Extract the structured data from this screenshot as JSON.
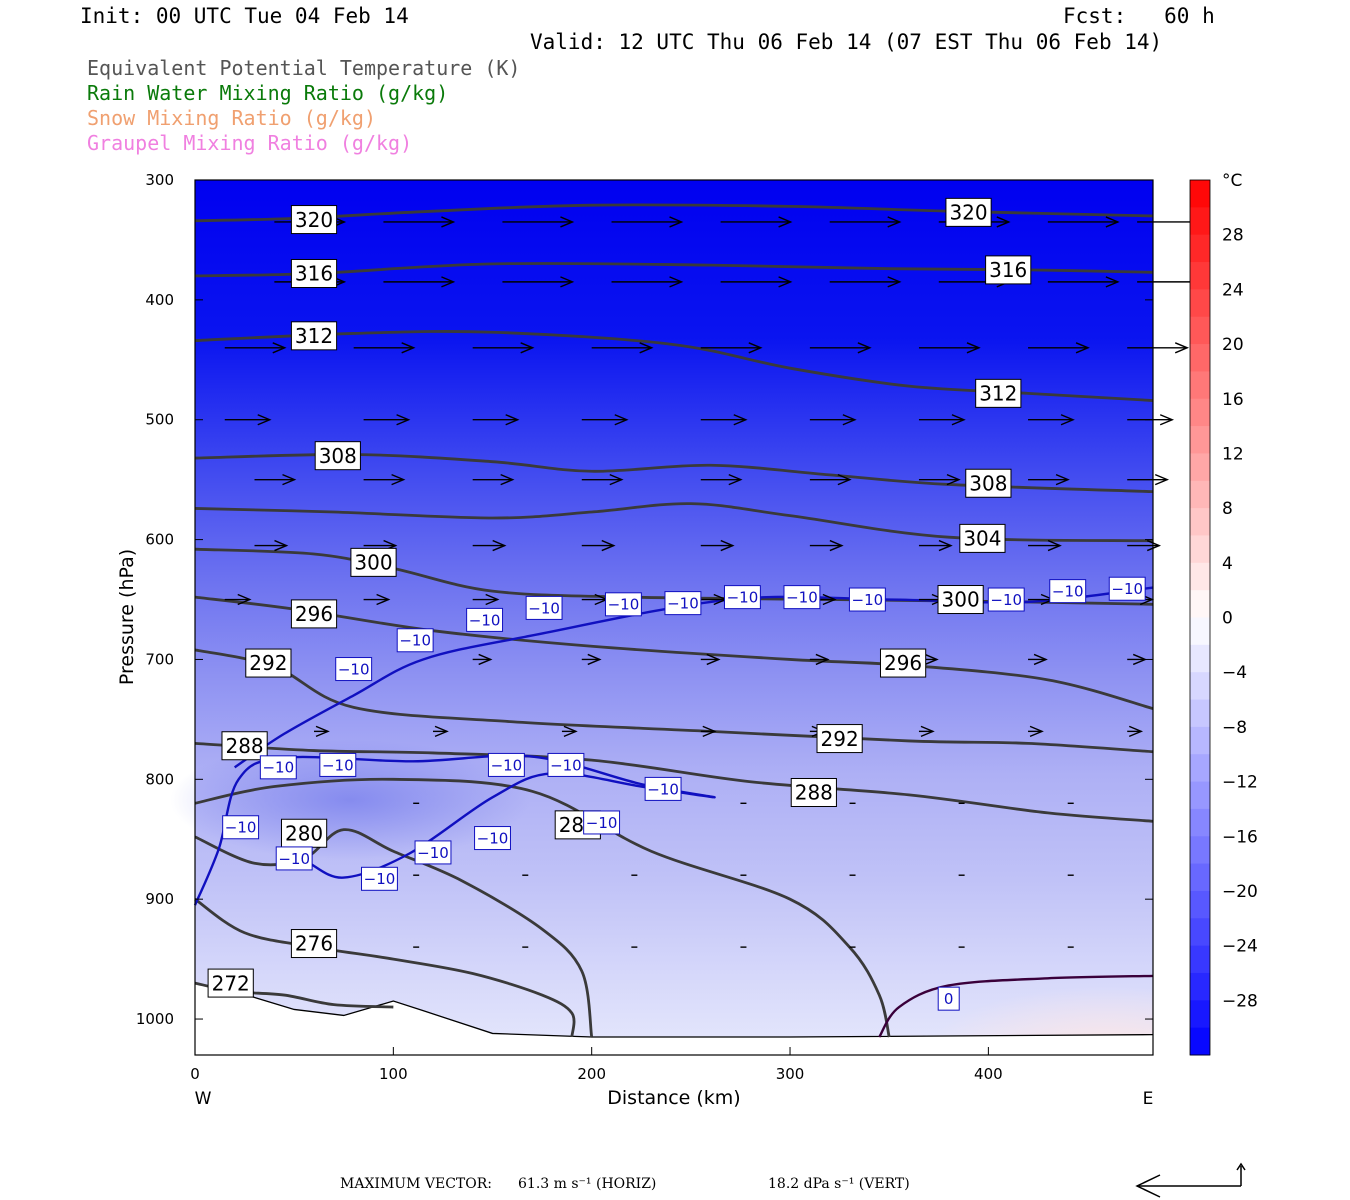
{
  "header": {
    "init": "Init: 00 UTC Tue 04 Feb 14",
    "fcst": "Fcst:   60 h",
    "valid": "Valid: 12 UTC Thu 06 Feb 14 (07 EST Thu 06 Feb 14)"
  },
  "legend": [
    {
      "text": "Equivalent Potential Temperature (K)",
      "color": "#555555"
    },
    {
      "text": "Rain Water Mixing Ratio (g/kg)",
      "color": "#0a7a0a"
    },
    {
      "text": "Snow Mixing Ratio (g/kg)",
      "color": "#f0a070"
    },
    {
      "text": "Graupel Mixing Ratio (g/kg)",
      "color": "#f080e0"
    }
  ],
  "footer": {
    "max_vector_label": "MAXIMUM VECTOR:",
    "horiz": "61.3 m s⁻¹ (HORIZ)",
    "vert": "18.2 dPa s⁻¹ (VERT)"
  },
  "chart_data": {
    "type": "cross-section",
    "xlabel": "Distance (km)",
    "ylabel": "Pressure (hPa)",
    "x_ticks": [
      0,
      100,
      200,
      300,
      400
    ],
    "xlim": [
      0,
      483
    ],
    "y_ticks": [
      300,
      400,
      500,
      600,
      700,
      800,
      900,
      1000
    ],
    "ylim": [
      300,
      1030
    ],
    "left_end_label": "W",
    "right_end_label": "E",
    "colorbar": {
      "unit": "°C",
      "ticks": [
        "28",
        "24",
        "20",
        "16",
        "12",
        "8",
        "4",
        "0",
        "−4",
        "−8",
        "−12",
        "−16",
        "−20",
        "−24",
        "−28"
      ],
      "range": [
        -32,
        32
      ],
      "cold_color": "#0000ff",
      "neutral_color": "#ffffff",
      "warm_color": "#ff0000"
    },
    "theta_e_contours": [
      {
        "value": "320",
        "points": [
          [
            0,
            334
          ],
          [
            50,
            332
          ],
          [
            120,
            326
          ],
          [
            200,
            321
          ],
          [
            300,
            322
          ],
          [
            380,
            326
          ],
          [
            483,
            330
          ]
        ],
        "label_at": [
          [
            60,
            333
          ],
          [
            390,
            327
          ]
        ]
      },
      {
        "value": "316",
        "points": [
          [
            0,
            380
          ],
          [
            60,
            378
          ],
          [
            150,
            370
          ],
          [
            260,
            371
          ],
          [
            350,
            374
          ],
          [
            420,
            375
          ],
          [
            483,
            377
          ]
        ],
        "label_at": [
          [
            60,
            378
          ],
          [
            410,
            375
          ]
        ]
      },
      {
        "value": "312",
        "points": [
          [
            0,
            434
          ],
          [
            80,
            428
          ],
          [
            150,
            427
          ],
          [
            240,
            437
          ],
          [
            300,
            457
          ],
          [
            360,
            472
          ],
          [
            420,
            478
          ],
          [
            483,
            484
          ]
        ],
        "label_at": [
          [
            60,
            430
          ],
          [
            405,
            478
          ]
        ]
      },
      {
        "value": "308",
        "points": [
          [
            0,
            532
          ],
          [
            80,
            529
          ],
          [
            150,
            535
          ],
          [
            200,
            543
          ],
          [
            260,
            538
          ],
          [
            320,
            546
          ],
          [
            380,
            554
          ],
          [
            483,
            560
          ]
        ],
        "label_at": [
          [
            72,
            530
          ],
          [
            400,
            553
          ]
        ]
      },
      {
        "value": "304",
        "points": [
          [
            0,
            574
          ],
          [
            70,
            577
          ],
          [
            150,
            582
          ],
          [
            200,
            577
          ],
          [
            250,
            570
          ],
          [
            300,
            580
          ],
          [
            380,
            598
          ],
          [
            483,
            601
          ]
        ],
        "label_at": [
          [
            397,
            599
          ]
        ]
      },
      {
        "value": "300",
        "points": [
          [
            0,
            608
          ],
          [
            60,
            612
          ],
          [
            100,
            624
          ],
          [
            150,
            643
          ],
          [
            220,
            648
          ],
          [
            320,
            650
          ],
          [
            420,
            652
          ],
          [
            483,
            654
          ]
        ],
        "label_at": [
          [
            90,
            619
          ],
          [
            386,
            650
          ]
        ]
      },
      {
        "value": "296",
        "points": [
          [
            0,
            648
          ],
          [
            50,
            658
          ],
          [
            120,
            676
          ],
          [
            200,
            689
          ],
          [
            300,
            700
          ],
          [
            360,
            705
          ],
          [
            430,
            717
          ],
          [
            483,
            741
          ]
        ],
        "label_at": [
          [
            60,
            662
          ],
          [
            357,
            703
          ]
        ]
      },
      {
        "value": "292",
        "points": [
          [
            0,
            692
          ],
          [
            40,
            706
          ],
          [
            80,
            740
          ],
          [
            160,
            752
          ],
          [
            260,
            760
          ],
          [
            360,
            768
          ],
          [
            420,
            770
          ],
          [
            483,
            777
          ]
        ],
        "label_at": [
          [
            37,
            703
          ],
          [
            325,
            766
          ]
        ]
      },
      {
        "value": "288",
        "points": [
          [
            0,
            770
          ],
          [
            60,
            776
          ],
          [
            120,
            778
          ],
          [
            200,
            784
          ],
          [
            280,
            802
          ],
          [
            360,
            813
          ],
          [
            430,
            828
          ],
          [
            483,
            835
          ]
        ],
        "label_at": [
          [
            25,
            772
          ],
          [
            312,
            811
          ]
        ]
      },
      {
        "value": "284",
        "points": [
          [
            0,
            820
          ],
          [
            40,
            806
          ],
          [
            100,
            800
          ],
          [
            170,
            810
          ],
          [
            230,
            860
          ],
          [
            300,
            900
          ],
          [
            330,
            940
          ],
          [
            345,
            980
          ],
          [
            350,
            1015
          ]
        ],
        "label_at": [
          [
            193,
            838
          ]
        ]
      },
      {
        "value": "280",
        "points": [
          [
            0,
            848
          ],
          [
            30,
            870
          ],
          [
            55,
            866
          ],
          [
            75,
            842
          ],
          [
            100,
            860
          ],
          [
            135,
            885
          ],
          [
            175,
            925
          ],
          [
            195,
            960
          ],
          [
            200,
            1015
          ]
        ],
        "label_at": [
          [
            55,
            845
          ]
        ]
      },
      {
        "value": "276",
        "points": [
          [
            0,
            900
          ],
          [
            25,
            928
          ],
          [
            60,
            940
          ],
          [
            100,
            950
          ],
          [
            140,
            962
          ],
          [
            175,
            980
          ],
          [
            190,
            995
          ],
          [
            190,
            1015
          ]
        ],
        "label_at": [
          [
            60,
            937
          ]
        ]
      },
      {
        "value": "272",
        "points": [
          [
            0,
            970
          ],
          [
            20,
            977
          ],
          [
            45,
            980
          ],
          [
            70,
            988
          ],
          [
            100,
            990
          ]
        ],
        "label_at": [
          [
            18,
            970
          ]
        ]
      }
    ],
    "temperature_isotherms": [
      {
        "value": "−10",
        "points": [
          [
            0,
            905
          ],
          [
            12,
            858
          ],
          [
            22,
            800
          ],
          [
            45,
            782
          ],
          [
            110,
            785
          ],
          [
            170,
            781
          ],
          [
            225,
            804
          ],
          [
            262,
            815
          ],
          [
            225,
            806
          ],
          [
            180,
            795
          ],
          [
            150,
            815
          ],
          [
            108,
            862
          ],
          [
            75,
            882
          ],
          [
            55,
            868
          ],
          [
            45,
            870
          ]
        ],
        "label_at": [
          [
            42,
            790
          ],
          [
            72,
            788
          ],
          [
            157,
            788
          ],
          [
            187,
            788
          ],
          [
            236,
            808
          ],
          [
            205,
            836
          ],
          [
            150,
            849
          ],
          [
            120,
            861
          ],
          [
            93,
            883
          ],
          [
            23,
            840
          ],
          [
            50,
            866
          ]
        ]
      },
      {
        "value": "−10",
        "points": [
          [
            20,
            790
          ],
          [
            45,
            762
          ],
          [
            80,
            730
          ],
          [
            115,
            700
          ],
          [
            170,
            680
          ],
          [
            270,
            650
          ],
          [
            350,
            650
          ],
          [
            420,
            652
          ],
          [
            483,
            640
          ]
        ],
        "label_at": [
          [
            80,
            708
          ],
          [
            111,
            684
          ],
          [
            146,
            667
          ],
          [
            176,
            657
          ],
          [
            216,
            654
          ],
          [
            246,
            653
          ],
          [
            276,
            648
          ],
          [
            306,
            648
          ],
          [
            339,
            650
          ],
          [
            409,
            650
          ],
          [
            440,
            643
          ],
          [
            470,
            641
          ]
        ]
      },
      {
        "value": "0",
        "points": [
          [
            345,
            1015
          ],
          [
            355,
            990
          ],
          [
            380,
            972
          ],
          [
            430,
            966
          ],
          [
            483,
            964
          ]
        ],
        "label_at": [
          [
            380,
            983
          ]
        ]
      }
    ],
    "temperature_field_note": "Shaded temperature (°C): about −30 near 300 hPa warming to about −4 near the surface in the east.",
    "wind_vectors_note": "Westerly winds, strongest aloft (about 300–500 hPa), weak near the surface."
  }
}
